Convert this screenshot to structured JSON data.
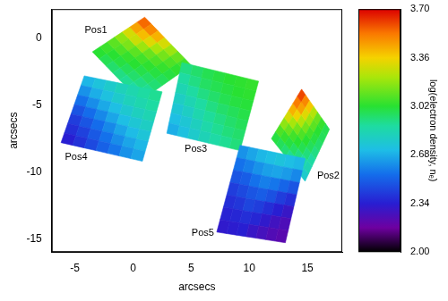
{
  "chart_data": {
    "type": "heatmap",
    "x_label": "arcsecs",
    "y_label": "arcsecs",
    "xlim": [
      -7,
      18
    ],
    "ylim": [
      -16,
      2.2
    ],
    "xticks": [
      -5,
      0,
      5,
      10,
      15
    ],
    "yticks": [
      -15,
      -10,
      -5,
      0
    ],
    "grid": false,
    "colorbar": {
      "label": "log(electron density, nₑ)",
      "range": [
        2.0,
        3.7
      ],
      "ticks": [
        {
          "value": 2.0,
          "label": "2.00"
        },
        {
          "value": 2.34,
          "label": "2.34"
        },
        {
          "value": 2.68,
          "label": "2.68"
        },
        {
          "value": 3.02,
          "label": "3.02"
        },
        {
          "value": 3.36,
          "label": "3.36"
        },
        {
          "value": 3.7,
          "label": "3.70"
        }
      ]
    },
    "panels": [
      {
        "name": "Pos1",
        "label_at": [
          -3.2,
          0.6
        ],
        "corners": [
          [
            -3.5,
            -1.0
          ],
          [
            1.0,
            1.6
          ],
          [
            5.0,
            -2.0
          ],
          [
            0.6,
            -4.7
          ]
        ],
        "cells": [
          [
            3.02,
            3.05,
            3.1,
            3.18,
            3.3,
            3.45,
            3.55
          ],
          [
            2.98,
            3.02,
            3.08,
            3.15,
            3.28,
            3.4,
            3.5
          ],
          [
            2.95,
            3.0,
            3.04,
            3.1,
            3.2,
            3.32,
            3.42
          ],
          [
            2.92,
            2.97,
            3.02,
            3.06,
            3.12,
            3.22,
            3.3
          ],
          [
            2.9,
            2.95,
            2.99,
            3.03,
            3.08,
            3.14,
            3.2
          ],
          [
            2.88,
            2.92,
            2.96,
            3.0,
            3.04,
            3.08,
            3.12
          ],
          [
            2.85,
            2.9,
            2.94,
            2.97,
            3.0,
            3.03,
            3.06
          ]
        ]
      },
      {
        "name": "Pos2",
        "label_at": [
          16.8,
          -10.3
        ],
        "corners": [
          [
            11.9,
            -7.5
          ],
          [
            14.5,
            -3.8
          ],
          [
            16.9,
            -6.8
          ],
          [
            14.8,
            -10.7
          ]
        ],
        "cells": [
          [
            3.0,
            3.08,
            3.18,
            3.3,
            3.42,
            3.52,
            3.6
          ],
          [
            2.97,
            3.04,
            3.12,
            3.22,
            3.35,
            3.45,
            3.5
          ],
          [
            2.94,
            3.0,
            3.06,
            3.14,
            3.24,
            3.32,
            3.38
          ],
          [
            2.9,
            2.96,
            3.02,
            3.08,
            3.14,
            3.2,
            3.24
          ],
          [
            2.86,
            2.92,
            2.98,
            3.02,
            3.06,
            3.1,
            3.12
          ],
          [
            2.82,
            2.88,
            2.93,
            2.97,
            3.0,
            3.02,
            3.04
          ],
          [
            2.78,
            2.84,
            2.88,
            2.92,
            2.95,
            2.97,
            2.98
          ]
        ]
      },
      {
        "name": "Pos3",
        "label_at": [
          5.4,
          -8.3
        ],
        "corners": [
          [
            4.2,
            -1.8
          ],
          [
            10.8,
            -3.2
          ],
          [
            9.2,
            -8.4
          ],
          [
            2.9,
            -7.1
          ]
        ],
        "cells": [
          [
            2.92,
            2.95,
            2.98,
            3.0,
            3.02,
            3.03,
            3.04
          ],
          [
            2.88,
            2.92,
            2.96,
            2.98,
            3.0,
            3.02,
            3.03
          ],
          [
            2.84,
            2.88,
            2.92,
            2.95,
            2.98,
            3.0,
            3.01
          ],
          [
            2.8,
            2.84,
            2.88,
            2.92,
            2.95,
            2.97,
            2.99
          ],
          [
            2.76,
            2.8,
            2.85,
            2.89,
            2.92,
            2.95,
            2.97
          ],
          [
            2.72,
            2.76,
            2.81,
            2.86,
            2.9,
            2.93,
            2.95
          ],
          [
            2.68,
            2.73,
            2.78,
            2.83,
            2.87,
            2.9,
            2.93
          ]
        ]
      },
      {
        "name": "Pos4",
        "label_at": [
          -4.9,
          -8.9
        ],
        "corners": [
          [
            -4.2,
            -2.8
          ],
          [
            2.5,
            -4.0
          ],
          [
            0.8,
            -9.2
          ],
          [
            -6.2,
            -7.8
          ]
        ],
        "cells": [
          [
            2.7,
            2.74,
            2.78,
            2.82,
            2.85,
            2.88,
            2.9
          ],
          [
            2.62,
            2.68,
            2.73,
            2.78,
            2.82,
            2.85,
            2.88
          ],
          [
            2.55,
            2.61,
            2.67,
            2.72,
            2.77,
            2.81,
            2.84
          ],
          [
            2.48,
            2.54,
            2.6,
            2.66,
            2.72,
            2.76,
            2.8
          ],
          [
            2.42,
            2.48,
            2.54,
            2.6,
            2.66,
            2.71,
            2.75
          ],
          [
            2.38,
            2.43,
            2.49,
            2.55,
            2.61,
            2.66,
            2.7
          ],
          [
            2.34,
            2.39,
            2.45,
            2.51,
            2.56,
            2.62,
            2.66
          ]
        ]
      },
      {
        "name": "Pos5",
        "label_at": [
          6.0,
          -14.6
        ],
        "corners": [
          [
            9.2,
            -8.0
          ],
          [
            14.8,
            -9.0
          ],
          [
            13.1,
            -15.3
          ],
          [
            7.2,
            -14.5
          ]
        ],
        "cells": [
          [
            2.62,
            2.66,
            2.7,
            2.72,
            2.74,
            2.72,
            2.7
          ],
          [
            2.55,
            2.58,
            2.62,
            2.65,
            2.66,
            2.64,
            2.6
          ],
          [
            2.48,
            2.5,
            2.55,
            2.58,
            2.56,
            2.52,
            2.48
          ],
          [
            2.42,
            2.45,
            2.48,
            2.5,
            2.47,
            2.42,
            2.38
          ],
          [
            2.38,
            2.4,
            2.44,
            2.42,
            2.38,
            2.34,
            2.3
          ],
          [
            2.35,
            2.36,
            2.38,
            2.36,
            2.32,
            2.28,
            2.25
          ],
          [
            2.32,
            2.33,
            2.34,
            2.3,
            2.27,
            2.24,
            2.22
          ]
        ]
      }
    ]
  }
}
